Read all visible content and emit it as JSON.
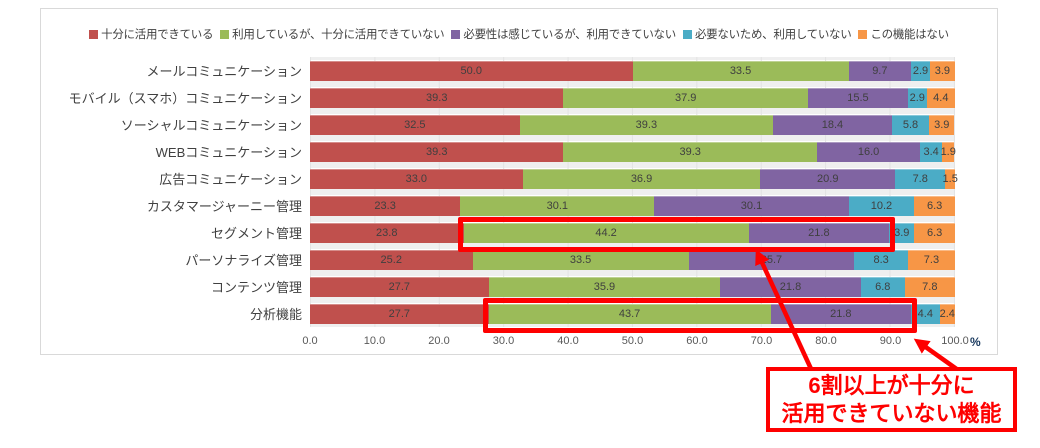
{
  "chart_data": {
    "type": "bar",
    "orientation": "horizontal-stacked",
    "title": "",
    "categories": [
      "メールコミュニケーション",
      "モバイル（スマホ）コミュニケーション",
      "ソーシャルコミュニケーション",
      "WEBコミュニケーション",
      "広告コミュニケーション",
      "カスタマージャーニー管理",
      "セグメント管理",
      "パーソナライズ管理",
      "コンテンツ管理",
      "分析機能"
    ],
    "series": [
      {
        "name": "十分に活用できている",
        "color": "#c0504d",
        "values": [
          50.0,
          39.3,
          32.5,
          39.3,
          33.0,
          23.3,
          23.8,
          25.2,
          27.7,
          27.7
        ]
      },
      {
        "name": "利用しているが、十分に活用できていない",
        "color": "#9bbb59",
        "values": [
          33.5,
          37.9,
          39.3,
          39.3,
          36.9,
          30.1,
          44.2,
          33.5,
          35.9,
          43.7
        ]
      },
      {
        "name": "必要性は感じているが、利用できていない",
        "color": "#8064a2",
        "values": [
          9.7,
          15.5,
          18.4,
          16.0,
          20.9,
          30.1,
          21.8,
          25.7,
          21.8,
          21.8
        ]
      },
      {
        "name": "必要ないため、利用していない",
        "color": "#4bacc6",
        "values": [
          2.9,
          2.9,
          5.8,
          3.4,
          7.8,
          10.2,
          3.9,
          8.3,
          6.8,
          4.4
        ]
      },
      {
        "name": "この機能はない",
        "color": "#f79646",
        "values": [
          3.9,
          4.4,
          3.9,
          1.9,
          1.5,
          6.3,
          6.3,
          7.3,
          7.8,
          2.4
        ]
      }
    ],
    "x_ticks": [
      "0.0",
      "10.0",
      "20.0",
      "30.0",
      "40.0",
      "50.0",
      "60.0",
      "70.0",
      "80.0",
      "90.0",
      "100.0"
    ],
    "x_unit": "%",
    "xlim": [
      0,
      100
    ],
    "value_label_decimals": 1,
    "legend_position": "top",
    "grid": "vertical"
  },
  "annotations": {
    "highlight_color": "#fe0000",
    "boxes": [
      {
        "name": "segment-management-highlight",
        "row_index": 6,
        "from_pct": 23.8,
        "to_pct": 89.8
      },
      {
        "name": "analytics-highlight",
        "row_index": 9,
        "from_pct": 27.7,
        "to_pct": 93.2
      }
    ],
    "callout": {
      "line1": "6割以上が十分に",
      "line2": "活用できていない機能"
    }
  }
}
